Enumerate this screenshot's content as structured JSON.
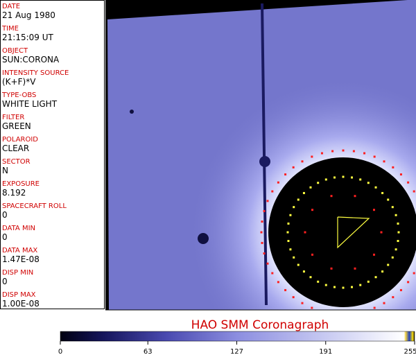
{
  "fields": [
    {
      "label": "DATE",
      "value": "21 Aug 1980"
    },
    {
      "label": "TIME",
      "value": "21:15:09 UT"
    },
    {
      "label": "OBJECT",
      "value": "SUN:CORONA"
    },
    {
      "label": "INTENSITY SOURCE",
      "value": "(K+F)*V"
    },
    {
      "label": "TYPE-OBS",
      "value": "WHITE LIGHT"
    },
    {
      "label": "FILTER",
      "value": "GREEN"
    },
    {
      "label": "POLAROID",
      "value": "CLEAR"
    },
    {
      "label": "SECTOR",
      "value": "N"
    },
    {
      "label": "EXPOSURE",
      "value": "8.192"
    },
    {
      "label": "SPACECRAFT ROLL",
      "value": "0"
    },
    {
      "label": "DATA MIN",
      "value": "0"
    },
    {
      "label": "DATA MAX",
      "value": "1.47E-08"
    },
    {
      "label": "DISP MIN",
      "value": "0"
    },
    {
      "label": "DISP MAX",
      "value": "1.00E-08"
    }
  ],
  "title": "HAO   SMM Coronagraph",
  "colorbar": {
    "ticks": [
      0,
      63,
      127,
      191,
      255
    ]
  }
}
